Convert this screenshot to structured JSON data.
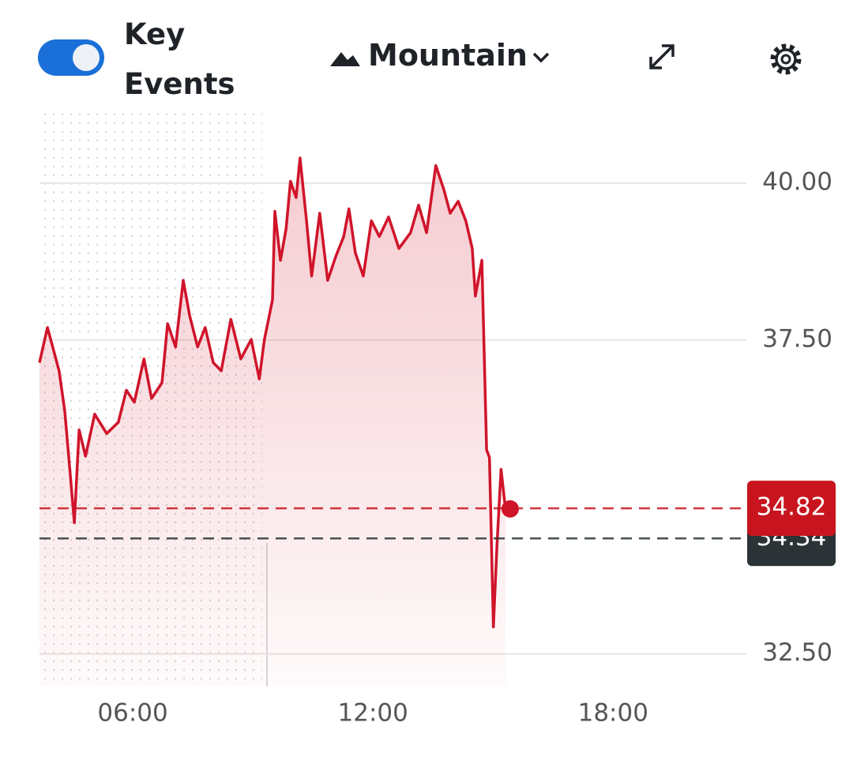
{
  "toolbar": {
    "toggle_label": "Key Events",
    "chart_style": "Mountain"
  },
  "chart_data": {
    "type": "line",
    "color": "#d0142a",
    "x": [
      3.67,
      3.87,
      4.03,
      4.16,
      4.3,
      4.42,
      4.54,
      4.66,
      4.82,
      5.05,
      5.35,
      5.64,
      5.84,
      6.04,
      6.28,
      6.47,
      6.73,
      6.87,
      7.07,
      7.26,
      7.42,
      7.62,
      7.81,
      8.01,
      8.21,
      8.45,
      8.7,
      8.96,
      9.16,
      9.29,
      9.49,
      9.55,
      9.69,
      9.83,
      9.94,
      10.08,
      10.18,
      10.34,
      10.47,
      10.67,
      10.87,
      11.07,
      11.27,
      11.4,
      11.56,
      11.76,
      11.96,
      12.16,
      12.39,
      12.65,
      12.94,
      13.14,
      13.34,
      13.57,
      13.77,
      13.93,
      14.13,
      14.32,
      14.48,
      14.56,
      14.72,
      14.84,
      14.91,
      15.01,
      15.1,
      15.2,
      15.31
    ],
    "values": [
      37.14,
      37.7,
      37.32,
      37.01,
      36.38,
      35.5,
      34.59,
      36.07,
      35.65,
      36.32,
      36.01,
      36.19,
      36.7,
      36.51,
      37.2,
      36.57,
      36.82,
      37.76,
      37.39,
      38.45,
      37.89,
      37.39,
      37.7,
      37.14,
      37.01,
      37.83,
      37.2,
      37.51,
      36.88,
      37.51,
      38.14,
      39.55,
      38.77,
      39.27,
      40.03,
      39.77,
      40.4,
      39.4,
      38.52,
      39.52,
      38.45,
      38.83,
      39.15,
      39.59,
      38.89,
      38.52,
      39.4,
      39.15,
      39.46,
      38.96,
      39.21,
      39.65,
      39.21,
      40.28,
      39.9,
      39.52,
      39.71,
      39.4,
      38.96,
      38.2,
      38.77,
      35.75,
      35.63,
      32.93,
      34.25,
      35.44,
      34.81
    ],
    "xlim": [
      3.67,
      21.23
    ],
    "xticks": [
      {
        "value": 6,
        "label": "06:00"
      },
      {
        "value": 12,
        "label": "12:00"
      },
      {
        "value": 18,
        "label": "18:00"
      }
    ],
    "ylim": [
      31.98,
      41.22
    ],
    "yticks": [
      {
        "value": 32.5,
        "label": "32.50"
      },
      {
        "value": 37.5,
        "label": "37.50"
      },
      {
        "value": 40,
        "label": "40.00"
      }
    ],
    "grid": true,
    "reference_lines": [
      {
        "value": 34.34,
        "color": "#2b3336"
      },
      {
        "value": 34.82,
        "color": "#c8141e"
      }
    ]
  }
}
